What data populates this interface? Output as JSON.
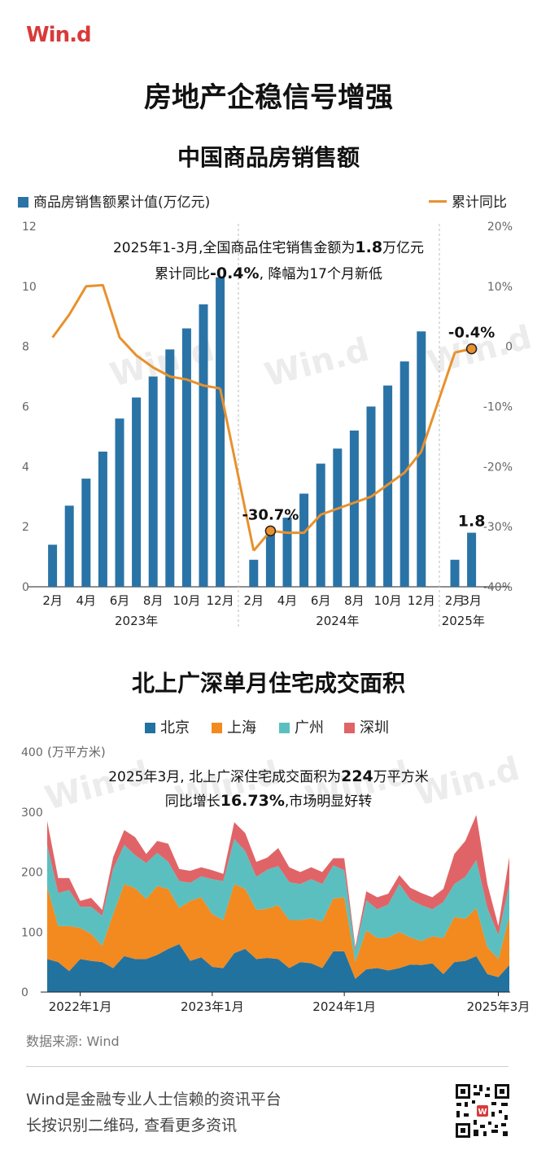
{
  "brand": {
    "logo_text": "Win.d"
  },
  "header": {
    "title": "房地产企稳信号增强"
  },
  "chart_data": [
    {
      "type": "bar",
      "title": "中国商品房销售额",
      "legend": [
        "商品房销售额累计值(万亿元)",
        "累计同比"
      ],
      "legend_placement": "top",
      "annotation": {
        "line1_prefix": "2025年1-3月,全国商品住宅销售金额为",
        "line1_value": "1.8",
        "line1_suffix": "万亿元",
        "line2_prefix": "累计同比",
        "line2_value": "-0.4%",
        "line2_suffix": ", 降幅为17个月新低"
      },
      "periods": [
        "2023-01",
        "2023-02",
        "2023-03",
        "2023-04",
        "2023-05",
        "2023-06",
        "2023-07",
        "2023-08",
        "2023-09",
        "2023-10",
        "2023-11",
        "2023-12",
        "2024-01",
        "2024-02",
        "2024-03",
        "2024-04",
        "2024-05",
        "2024-06",
        "2024-07",
        "2024-08",
        "2024-09",
        "2024-10",
        "2024-11",
        "2024-12",
        "2025-01",
        "2025-02",
        "2025-03"
      ],
      "series": [
        {
          "name": "商品房销售额累计值(万亿元)",
          "axis": "left",
          "values": [
            null,
            1.4,
            2.7,
            3.6,
            4.5,
            5.6,
            6.3,
            7.0,
            7.9,
            8.6,
            9.4,
            10.3,
            null,
            0.9,
            1.9,
            2.3,
            3.1,
            4.1,
            4.6,
            5.2,
            6.0,
            6.7,
            7.5,
            8.5,
            null,
            0.9,
            1.8
          ]
        },
        {
          "name": "累计同比",
          "axis": "right",
          "values": [
            null,
            1.5,
            5.3,
            10.0,
            10.2,
            1.5,
            -1.5,
            -3.5,
            -5.0,
            -5.5,
            -6.5,
            -7.0,
            null,
            -34.0,
            -30.7,
            -31.0,
            -31.0,
            -28.0,
            -27.0,
            -26.0,
            -25.0,
            -23.0,
            -21.0,
            -17.5,
            null,
            -1.0,
            -0.4
          ]
        }
      ],
      "data_labels": [
        {
          "period": "2024-03",
          "text": "-30.7%"
        },
        {
          "period": "2025-03",
          "text": "-0.4%"
        },
        {
          "period": "2025-03",
          "text": "1.8"
        }
      ],
      "x_tick_labels": [
        {
          "period": "2023-02",
          "text": "2月"
        },
        {
          "period": "2023-04",
          "text": "4月"
        },
        {
          "period": "2023-06",
          "text": "6月"
        },
        {
          "period": "2023-08",
          "text": "8月"
        },
        {
          "period": "2023-10",
          "text": "10月"
        },
        {
          "period": "2023-12",
          "text": "12月"
        },
        {
          "period": "2024-02",
          "text": "2月"
        },
        {
          "period": "2024-04",
          "text": "4月"
        },
        {
          "period": "2024-06",
          "text": "6月"
        },
        {
          "period": "2024-08",
          "text": "8月"
        },
        {
          "period": "2024-10",
          "text": "10月"
        },
        {
          "period": "2024-12",
          "text": "12月"
        },
        {
          "period": "2025-02",
          "text": "2月"
        },
        {
          "period": "2025-03",
          "text": "3月"
        }
      ],
      "x_year_labels": [
        {
          "period": "2023-07",
          "text": "2023年"
        },
        {
          "period": "2024-07",
          "text": "2024年"
        },
        {
          "period": "2025-02",
          "text": "2025年"
        }
      ],
      "y_left": {
        "ylim": [
          0,
          12
        ],
        "ticks": [
          "0",
          "2",
          "4",
          "6",
          "8",
          "10",
          "12"
        ]
      },
      "y_right": {
        "ylim": [
          -40,
          20
        ],
        "ticks": [
          "-40%",
          "-30%",
          "-20%",
          "-10%",
          "0",
          "10%",
          "20%"
        ]
      },
      "grid": false,
      "colors": {
        "bar": "#2a73a6",
        "line": "#e8912d",
        "marker": "#e8912d",
        "watermark": "#ececec"
      }
    },
    {
      "type": "area",
      "stacked": true,
      "title": "北上广深单月住宅成交面积",
      "unit_label": "(万平方米)",
      "legend_placement": "top",
      "annotation": {
        "line1_prefix": "2025年3月, 北上广深住宅成交面积为",
        "line1_value": "224",
        "line1_suffix": "万平方米",
        "line2_prefix": "同比增长",
        "line2_value": "16.73%",
        "line2_suffix": ",市场明显好转"
      },
      "x_range": [
        "2021-10",
        "2025-04"
      ],
      "x_tick_labels": [
        {
          "period": "2022-01",
          "text": "2022年1月"
        },
        {
          "period": "2023-01",
          "text": "2023年1月"
        },
        {
          "period": "2024-01",
          "text": "2024年1月"
        },
        {
          "period": "2025-03",
          "text": "2025年3月"
        }
      ],
      "ylim": [
        0,
        400
      ],
      "y_ticks": [
        "0",
        "100",
        "200",
        "300",
        "400"
      ],
      "grid": false,
      "series": [
        {
          "name": "北京",
          "color": "#2272a0",
          "values": [
            55,
            50,
            35,
            55,
            52,
            50,
            40,
            60,
            55,
            55,
            62,
            72,
            80,
            52,
            58,
            42,
            40,
            65,
            72,
            55,
            57,
            55,
            40,
            50,
            48,
            40,
            68,
            68,
            22,
            38,
            40,
            36,
            40,
            46,
            45,
            48,
            30,
            50,
            52,
            60,
            30,
            25,
            45
          ]
        },
        {
          "name": "上海",
          "color": "#f28a1f",
          "values": [
            120,
            60,
            75,
            52,
            45,
            27,
            90,
            120,
            118,
            100,
            115,
            100,
            60,
            100,
            100,
            88,
            80,
            115,
            100,
            82,
            82,
            90,
            80,
            70,
            75,
            78,
            88,
            90,
            28,
            65,
            50,
            55,
            60,
            45,
            40,
            45,
            60,
            75,
            70,
            80,
            45,
            30,
            80
          ]
        },
        {
          "name": "广州",
          "color": "#5bbfc0",
          "values": [
            70,
            55,
            60,
            35,
            45,
            50,
            75,
            65,
            55,
            60,
            55,
            45,
            45,
            30,
            35,
            58,
            65,
            75,
            63,
            55,
            65,
            65,
            63,
            60,
            65,
            62,
            55,
            45,
            20,
            50,
            48,
            55,
            80,
            63,
            60,
            45,
            60,
            55,
            70,
            80,
            65,
            40,
            55
          ]
        },
        {
          "name": "深圳",
          "color": "#e06467",
          "values": [
            40,
            25,
            20,
            10,
            15,
            10,
            20,
            25,
            30,
            15,
            20,
            30,
            20,
            20,
            15,
            15,
            12,
            28,
            30,
            25,
            20,
            30,
            25,
            20,
            20,
            20,
            12,
            20,
            5,
            15,
            20,
            18,
            15,
            20,
            20,
            20,
            22,
            50,
            60,
            75,
            40,
            15,
            45
          ]
        }
      ],
      "colors": {
        "watermark": "#ececec"
      }
    }
  ],
  "footer": {
    "source": "数据来源: Wind",
    "line1": "Wind是金融专业人士信赖的资讯平台",
    "line2": "长按识别二维码, 查看更多资讯"
  }
}
